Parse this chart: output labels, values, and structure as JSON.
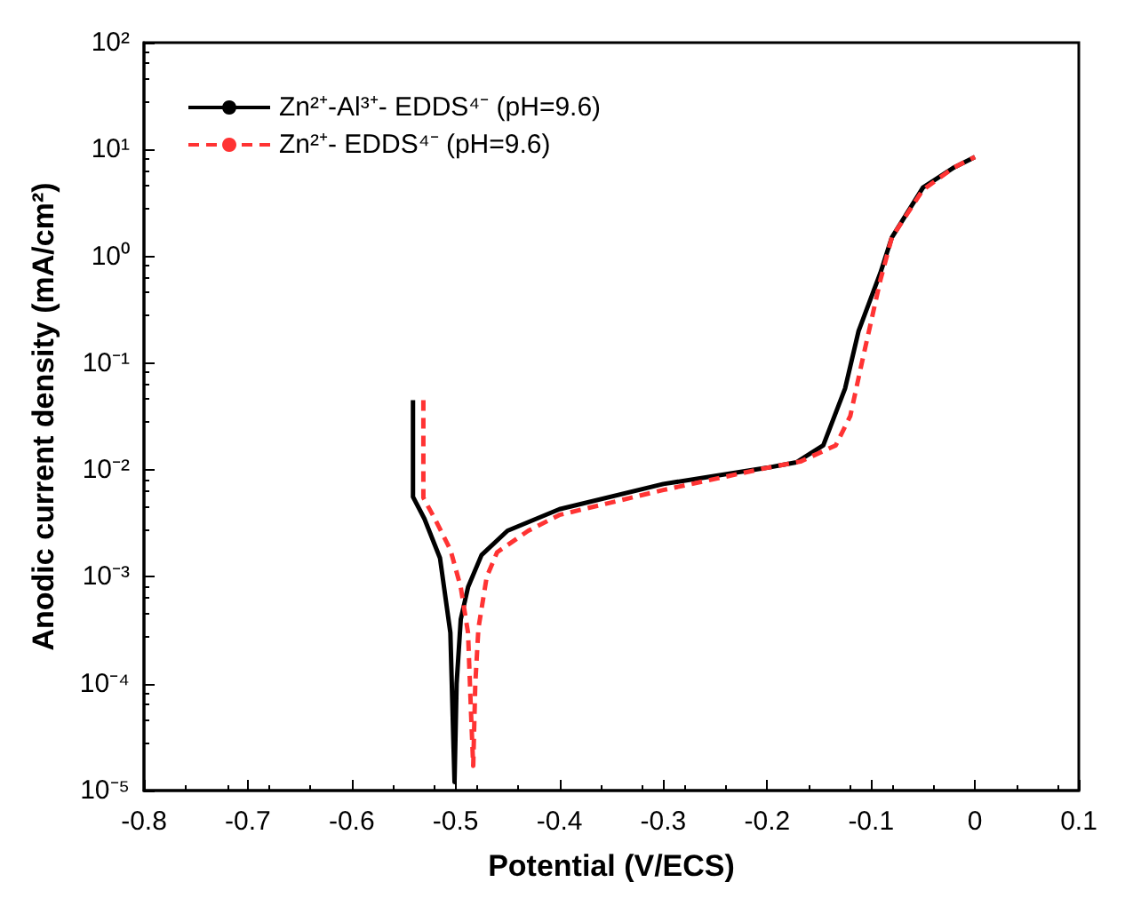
{
  "chart_data": {
    "type": "line",
    "xlabel": "Potential (V/ECS)",
    "ylabel": "Anodic current density (mA/cm²)",
    "log": "y",
    "xlim": [
      -0.8,
      0.1
    ],
    "xticks": [
      -0.8,
      -0.7,
      -0.6,
      -0.5,
      -0.4,
      -0.3,
      -0.2,
      -0.1,
      0,
      0.1
    ],
    "ylim": [
      1e-05,
      100
    ],
    "yticks": [
      {
        "value": 1e-05,
        "label": "10⁻⁵"
      },
      {
        "value": 0.0001,
        "label": "10⁻⁴"
      },
      {
        "value": 0.001,
        "label": "10⁻³"
      },
      {
        "value": 0.01,
        "label": "10⁻²"
      },
      {
        "value": 0.1,
        "label": "10⁻¹"
      },
      {
        "value": 1,
        "label": "10⁰"
      },
      {
        "value": 10,
        "label": "10¹"
      },
      {
        "value": 100,
        "label": "10²"
      }
    ],
    "grid": false,
    "legend": "top left",
    "marker": "none",
    "series": [
      {
        "name": "Zn²⁺-Al³⁺- EDDS⁴⁻ (pH=9.6)",
        "color": "#000000",
        "line_style": "solid",
        "x": [
          -0.541,
          -0.541,
          -0.53,
          -0.515,
          -0.505,
          -0.501,
          -0.499,
          -0.495,
          -0.488,
          -0.475,
          -0.45,
          -0.4,
          -0.3,
          -0.2,
          -0.172,
          -0.146,
          -0.125,
          -0.112,
          -0.091,
          -0.08,
          -0.05,
          -0.02,
          0
        ],
        "values": [
          0.045,
          0.0056,
          0.0035,
          0.0015,
          0.0003,
          1.2e-05,
          0.0001,
          0.0004,
          0.0008,
          0.0016,
          0.0027,
          0.0043,
          0.0074,
          0.0105,
          0.0118,
          0.017,
          0.058,
          0.2,
          0.7,
          1.5,
          4.4,
          6.8,
          8.5
        ]
      },
      {
        "name": "Zn²⁺- EDDS⁴⁻ (pH=9.6)",
        "color": "#ff3333",
        "line_style": "dashed",
        "x": [
          -0.531,
          -0.531,
          -0.52,
          -0.505,
          -0.495,
          -0.488,
          -0.485,
          -0.483,
          -0.481,
          -0.478,
          -0.47,
          -0.46,
          -0.43,
          -0.4,
          -0.3,
          -0.2,
          -0.168,
          -0.134,
          -0.12,
          -0.108,
          -0.091,
          -0.08,
          -0.05,
          -0.02,
          0
        ],
        "values": [
          0.045,
          0.0055,
          0.0035,
          0.0018,
          0.0008,
          0.0003,
          5e-05,
          1.7e-05,
          0.0001,
          0.00033,
          0.001,
          0.0017,
          0.0027,
          0.0038,
          0.0065,
          0.0105,
          0.012,
          0.017,
          0.032,
          0.11,
          0.6,
          1.5,
          4.2,
          6.8,
          8.5
        ]
      }
    ]
  }
}
